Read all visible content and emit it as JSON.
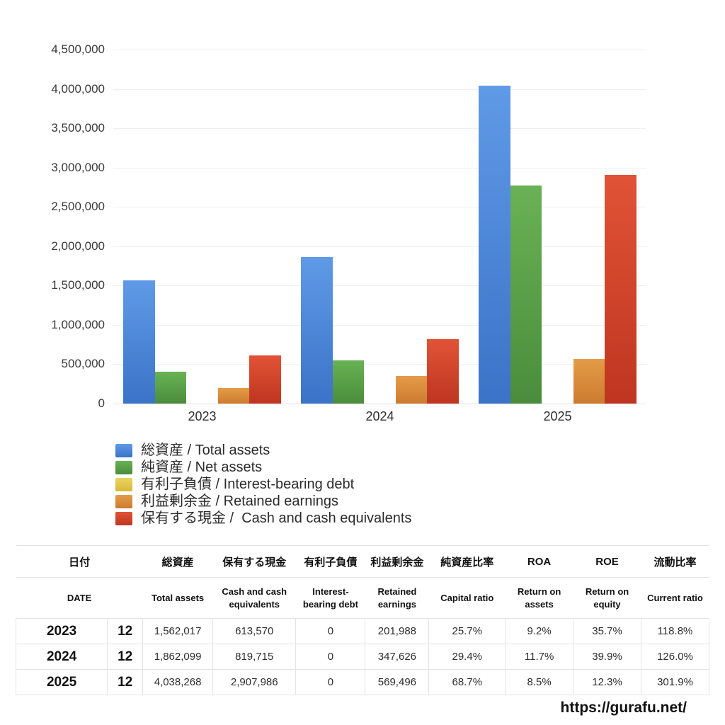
{
  "page": {
    "watermark": "https://gurafu.net/"
  },
  "chart_data": {
    "type": "bar",
    "title": "",
    "xlabel": "",
    "ylabel": "",
    "categories": [
      "2023",
      "2024",
      "2025"
    ],
    "series": [
      {
        "name_ja": "総資産",
        "name_en": "Total assets",
        "label": "総資産 / Total assets",
        "color_top": "#5f9ae6",
        "color_bottom": "#3b73c8",
        "values": [
          1562017,
          1862099,
          4038268
        ]
      },
      {
        "name_ja": "純資産",
        "name_en": "Net assets",
        "label": "純資産 / Net assets",
        "color_top": "#69b254",
        "color_bottom": "#4a8c3c",
        "values": [
          401438,
          547457,
          2774290
        ]
      },
      {
        "name_ja": "有利子負債",
        "name_en": "Interest-bearing debt",
        "label": "有利子負債 / Interest-bearing debt",
        "color_top": "#ecd45e",
        "color_bottom": "#d9b83a",
        "values": [
          0,
          0,
          0
        ]
      },
      {
        "name_ja": "利益剰余金",
        "name_en": "Retained earnings",
        "label": "利益剰余金 / Retained earnings",
        "color_top": "#e49c48",
        "color_bottom": "#cd7b2e",
        "values": [
          201988,
          347626,
          569496
        ]
      },
      {
        "name_ja": "保有する現金",
        "name_en": "Cash and cash equivalents",
        "label": "保有する現金 /  Cash and cash equivalents",
        "color_top": "#e05336",
        "color_bottom": "#bf3520",
        "values": [
          613570,
          819715,
          2907986
        ]
      }
    ],
    "ylim": [
      0,
      4500000
    ],
    "ytick_step": 500000,
    "grid": true,
    "legend_position": "bottom-left"
  },
  "table": {
    "headers_ja": [
      "日付",
      "総資産",
      "保有する現金",
      "有利子負債",
      "利益剰余金",
      "純資産比率",
      "ROA",
      "ROE",
      "流動比率"
    ],
    "headers_en": [
      "DATE",
      "Total assets",
      "Cash and cash equivalents",
      "Interest-bearing debt",
      "Retained earnings",
      "Capital ratio",
      "Return on assets",
      "Return on equity",
      "Current ratio"
    ],
    "rows": [
      {
        "year": "2023",
        "month": "12",
        "values": [
          "1,562,017",
          "613,570",
          "0",
          "201,988",
          "25.7%",
          "9.2%",
          "35.7%",
          "118.8%"
        ]
      },
      {
        "year": "2024",
        "month": "12",
        "values": [
          "1,862,099",
          "819,715",
          "0",
          "347,626",
          "29.4%",
          "11.7%",
          "39.9%",
          "126.0%"
        ]
      },
      {
        "year": "2025",
        "month": "12",
        "values": [
          "4,038,268",
          "2,907,986",
          "0",
          "569,496",
          "68.7%",
          "8.5%",
          "12.3%",
          "301.9%"
        ]
      }
    ]
  }
}
